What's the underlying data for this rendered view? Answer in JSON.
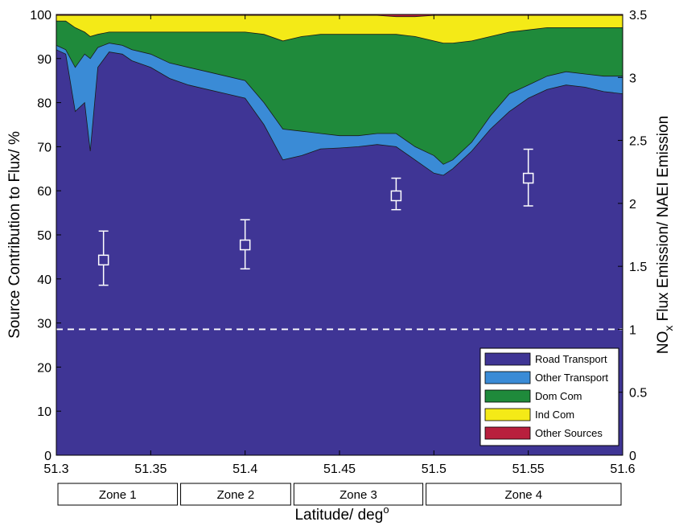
{
  "chart_data": {
    "type": "area",
    "xlabel": "Latitude/ deg",
    "xlabel_superscript": "o",
    "ylabel": "Source Contribution to Flux/ %",
    "y2label_prefix": "NO",
    "y2label_subscript": "x",
    "y2label_suffix": " Flux Emission/ NAEI Emission",
    "xlim": [
      51.3,
      51.6
    ],
    "ylim": [
      0,
      100
    ],
    "y2lim": [
      0,
      3.5
    ],
    "x_ticks": [
      "51.3",
      "51.35",
      "51.4",
      "51.45",
      "51.5",
      "51.55",
      "51.6"
    ],
    "y_ticks": [
      "0",
      "10",
      "20",
      "30",
      "40",
      "50",
      "60",
      "70",
      "80",
      "90",
      "100"
    ],
    "y2_ticks": [
      "0",
      "0.5",
      "1",
      "1.5",
      "2",
      "2.5",
      "3",
      "3.5"
    ],
    "legend_position": "bottom-right",
    "colors": {
      "Road Transport": "#3f3595",
      "Other Transport": "#3a8bd6",
      "Dom Com": "#1f8a3b",
      "Ind Com": "#f4ea17",
      "Other Sources": "#b81f3d"
    },
    "x": [
      51.3,
      51.305,
      51.31,
      51.315,
      51.318,
      51.322,
      51.328,
      51.335,
      51.34,
      51.35,
      51.36,
      51.37,
      51.38,
      51.39,
      51.4,
      51.41,
      51.42,
      51.43,
      51.44,
      51.45,
      51.46,
      51.47,
      51.48,
      51.49,
      51.5,
      51.505,
      51.51,
      51.52,
      51.53,
      51.54,
      51.55,
      51.56,
      51.57,
      51.58,
      51.59,
      51.6
    ],
    "series": [
      {
        "name": "Road Transport",
        "cumulative_top": [
          92,
          91,
          78,
          80,
          69,
          88,
          91.5,
          91,
          89.5,
          88,
          85.5,
          84,
          83,
          82,
          81,
          75,
          67,
          68,
          69.5,
          69.7,
          70,
          70.5,
          70,
          67,
          64,
          63.5,
          65,
          69,
          74,
          78,
          81,
          83,
          84,
          83.5,
          82.5,
          82
        ]
      },
      {
        "name": "Other Transport",
        "cumulative_top": [
          93,
          92,
          88,
          91,
          90,
          92.5,
          93.5,
          93,
          92,
          91,
          89,
          88,
          87,
          86,
          85,
          80,
          74,
          73.5,
          73,
          72.5,
          72.5,
          73,
          73,
          70,
          68,
          66,
          67,
          71,
          77,
          82,
          84,
          86,
          87,
          86.5,
          86,
          86
        ]
      },
      {
        "name": "Dom Com",
        "cumulative_top": [
          98.5,
          98.5,
          97,
          96,
          95,
          95.5,
          96,
          96,
          96,
          96,
          96,
          96,
          96,
          96,
          96,
          95.5,
          94,
          95,
          95.5,
          95.5,
          95.5,
          95.5,
          95.5,
          95,
          94,
          93.5,
          93.5,
          94,
          95,
          96,
          96.5,
          97,
          97,
          97,
          97,
          97
        ]
      },
      {
        "name": "Ind Com",
        "cumulative_top": [
          99.8,
          99.8,
          99.8,
          99.8,
          99.8,
          99.8,
          99.8,
          99.8,
          99.8,
          99.8,
          99.8,
          99.8,
          99.8,
          99.8,
          99.8,
          99.8,
          99.8,
          99.8,
          99.8,
          99.8,
          99.8,
          99.8,
          99.5,
          99.5,
          99.8,
          99.8,
          99.8,
          99.8,
          99.8,
          99.8,
          99.8,
          99.8,
          99.8,
          99.8,
          99.8,
          99.8
        ]
      },
      {
        "name": "Other Sources",
        "cumulative_top": [
          100,
          100,
          100,
          100,
          100,
          100,
          100,
          100,
          100,
          100,
          100,
          100,
          100,
          100,
          100,
          100,
          100,
          100,
          100,
          100,
          100,
          100,
          100,
          100,
          100,
          100,
          100,
          100,
          100,
          100,
          100,
          100,
          100,
          100,
          100,
          100
        ]
      }
    ],
    "ratio_points": [
      {
        "x": 51.325,
        "y": 1.55,
        "low": 1.35,
        "high": 1.78
      },
      {
        "x": 51.4,
        "y": 1.67,
        "low": 1.48,
        "high": 1.87
      },
      {
        "x": 51.48,
        "y": 2.06,
        "low": 1.95,
        "high": 2.2
      },
      {
        "x": 51.55,
        "y": 2.2,
        "low": 1.98,
        "high": 2.43
      }
    ],
    "reference_line": {
      "y2": 1
    },
    "zones": [
      {
        "label": "Zone 1",
        "from": 51.3,
        "to": 51.365
      },
      {
        "label": "Zone 2",
        "from": 51.365,
        "to": 51.425
      },
      {
        "label": "Zone 3",
        "from": 51.425,
        "to": 51.495
      },
      {
        "label": "Zone 4",
        "from": 51.495,
        "to": 51.6
      }
    ]
  }
}
